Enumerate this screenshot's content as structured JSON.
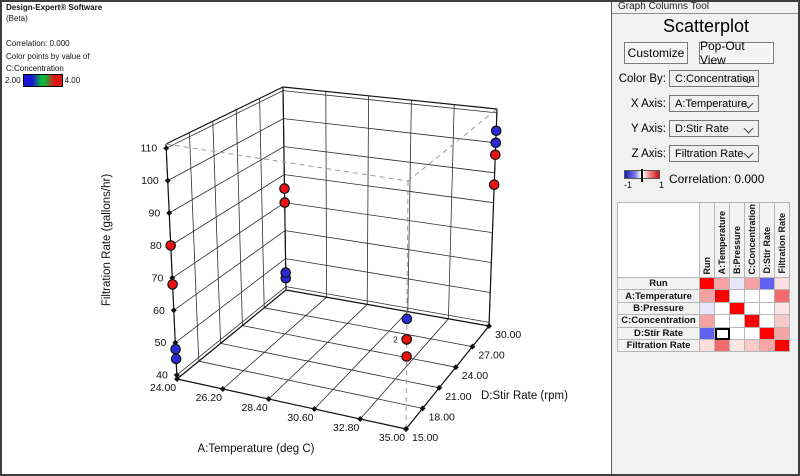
{
  "annotation": {
    "title": "Design-Expert® Software",
    "subtitle": "(Beta)",
    "correlation": "Correlation: 0.000",
    "color_by_line": "Color points by value of",
    "factor_line": "C:Concentration",
    "legend_min": "2.00",
    "legend_max": "4.00"
  },
  "chart_data": {
    "type": "scatter",
    "subtype": "3d-scatterplot",
    "x_axis": {
      "label": "A:Temperature (deg C)",
      "range": [
        24,
        35
      ],
      "tick_labels": [
        "24.00",
        "26.20",
        "28.40",
        "30.60",
        "32.80",
        "35.00"
      ]
    },
    "y_axis": {
      "label": "D:Stir Rate (rpm)",
      "range": [
        15,
        30
      ],
      "tick_labels": [
        "15.00",
        "18.00",
        "21.00",
        "24.00",
        "27.00",
        "30.00"
      ]
    },
    "z_axis": {
      "label": "Filtration Rate (gallons/hr)",
      "range": [
        40,
        110
      ],
      "ticks": [
        40,
        50,
        60,
        70,
        80,
        90,
        100,
        110
      ]
    },
    "color_by": {
      "factor": "C:Concentration",
      "min": 2.0,
      "max": 4.0
    },
    "point_colors": {
      "low": "#2b2bd6",
      "high": "#ee1313"
    },
    "points": [
      {
        "temp": 24,
        "stir": 15,
        "rate": 45,
        "conc": 2
      },
      {
        "temp": 24,
        "stir": 15,
        "rate": 48,
        "conc": 2
      },
      {
        "temp": 24,
        "stir": 15,
        "rate": 68,
        "conc": 4
      },
      {
        "temp": 24,
        "stir": 15,
        "rate": 80,
        "conc": 4
      },
      {
        "temp": 35,
        "stir": 15,
        "rate": 71,
        "conc": 2
      },
      {
        "temp": 35,
        "stir": 15,
        "rate": 65,
        "conc": 2
      },
      {
        "temp": 35,
        "stir": 15,
        "rate": 65,
        "conc": 4
      },
      {
        "temp": 35,
        "stir": 15,
        "rate": 60,
        "conc": 4
      },
      {
        "temp": 24,
        "stir": 30,
        "rate": 43,
        "conc": 2
      },
      {
        "temp": 24,
        "stir": 30,
        "rate": 45,
        "conc": 2
      },
      {
        "temp": 24,
        "stir": 30,
        "rate": 70,
        "conc": 4
      },
      {
        "temp": 24,
        "stir": 30,
        "rate": 75,
        "conc": 4
      },
      {
        "temp": 35,
        "stir": 30,
        "rate": 100,
        "conc": 2
      },
      {
        "temp": 35,
        "stir": 30,
        "rate": 104,
        "conc": 2
      },
      {
        "temp": 35,
        "stir": 30,
        "rate": 86,
        "conc": 4
      },
      {
        "temp": 35,
        "stir": 30,
        "rate": 96,
        "conc": 4
      }
    ],
    "overlap_labels": [
      {
        "text": "2",
        "temp": 35,
        "stir": 15,
        "rate": 65
      }
    ]
  },
  "panel": {
    "caption": "Graph Columns Tool",
    "title": "Scatterplot",
    "buttons": [
      {
        "label": "Customize"
      },
      {
        "label": "Pop-Out View"
      }
    ],
    "selectors": [
      {
        "label": "Color By:",
        "value": "C:Concentration"
      },
      {
        "label": "X Axis:",
        "value": "A:Temperature"
      },
      {
        "label": "Y Axis:",
        "value": "D:Stir Rate"
      },
      {
        "label": "Z Axis:",
        "value": "Filtration Rate"
      }
    ],
    "corr_scale": {
      "min_label": "-1",
      "max_label": "1"
    },
    "correlation_text": "Correlation: 0.000",
    "matrix": {
      "labels": [
        "Run",
        "A:Temperature",
        "B:Pressure",
        "C:Concentration",
        "D:Stir Rate",
        "Filtration Rate"
      ],
      "cell_colors": [
        [
          "#ff0000",
          "#f7a2a2",
          "#e6e6f8",
          "#f7a2a2",
          "#6161ef",
          "#fcdede"
        ],
        [
          "#f7a2a2",
          "#ff0000",
          "#ffffff",
          "#ffffff",
          "#ffffff",
          "#f56a6a"
        ],
        [
          "#e6e6f8",
          "#ffffff",
          "#ff0000",
          "#ffffff",
          "#ffffff",
          "#fbe4e4"
        ],
        [
          "#f7a2a2",
          "#ffffff",
          "#ffffff",
          "#ff0000",
          "#ffffff",
          "#f9c8c8"
        ],
        [
          "#6161ef",
          "#ffffff",
          "#ffffff",
          "#ffffff",
          "#ff0000",
          "#f7a6a6"
        ],
        [
          "#fcdede",
          "#f56a6a",
          "#fbe4e4",
          "#f9c8c8",
          "#f7a6a6",
          "#ff0000"
        ]
      ],
      "selected_cell": {
        "row": 4,
        "col": 1
      }
    }
  }
}
